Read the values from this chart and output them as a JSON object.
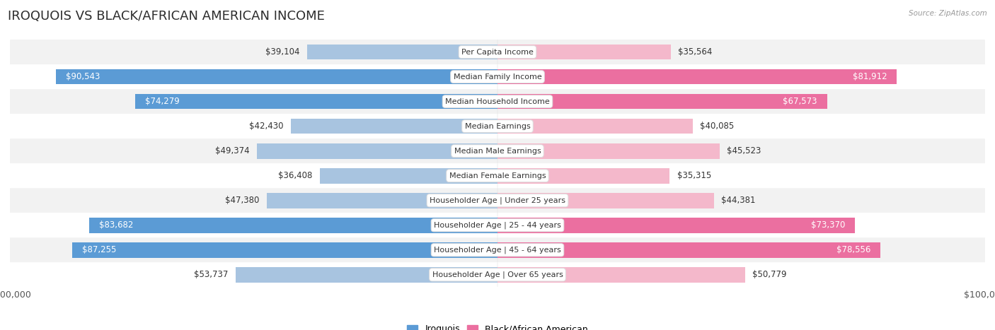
{
  "title": "IROQUOIS VS BLACK/AFRICAN AMERICAN INCOME",
  "source": "Source: ZipAtlas.com",
  "categories": [
    "Per Capita Income",
    "Median Family Income",
    "Median Household Income",
    "Median Earnings",
    "Median Male Earnings",
    "Median Female Earnings",
    "Householder Age | Under 25 years",
    "Householder Age | 25 - 44 years",
    "Householder Age | 45 - 64 years",
    "Householder Age | Over 65 years"
  ],
  "iroquois_values": [
    39104,
    90543,
    74279,
    42430,
    49374,
    36408,
    47380,
    83682,
    87255,
    53737
  ],
  "black_values": [
    35564,
    81912,
    67573,
    40085,
    45523,
    35315,
    44381,
    73370,
    78556,
    50779
  ],
  "max_val": 100000,
  "iroquois_color_light": "#a8c4e0",
  "iroquois_color_dark": "#5b9bd5",
  "black_color_light": "#f4b8cb",
  "black_color_dark": "#eb6fa0",
  "bg_color": "#ffffff",
  "row_bg_even": "#f2f2f2",
  "row_bg_odd": "#ffffff",
  "bar_height": 0.62,
  "label_fontsize": 8.5,
  "title_fontsize": 13,
  "tick_fontsize": 9,
  "threshold": 60000
}
